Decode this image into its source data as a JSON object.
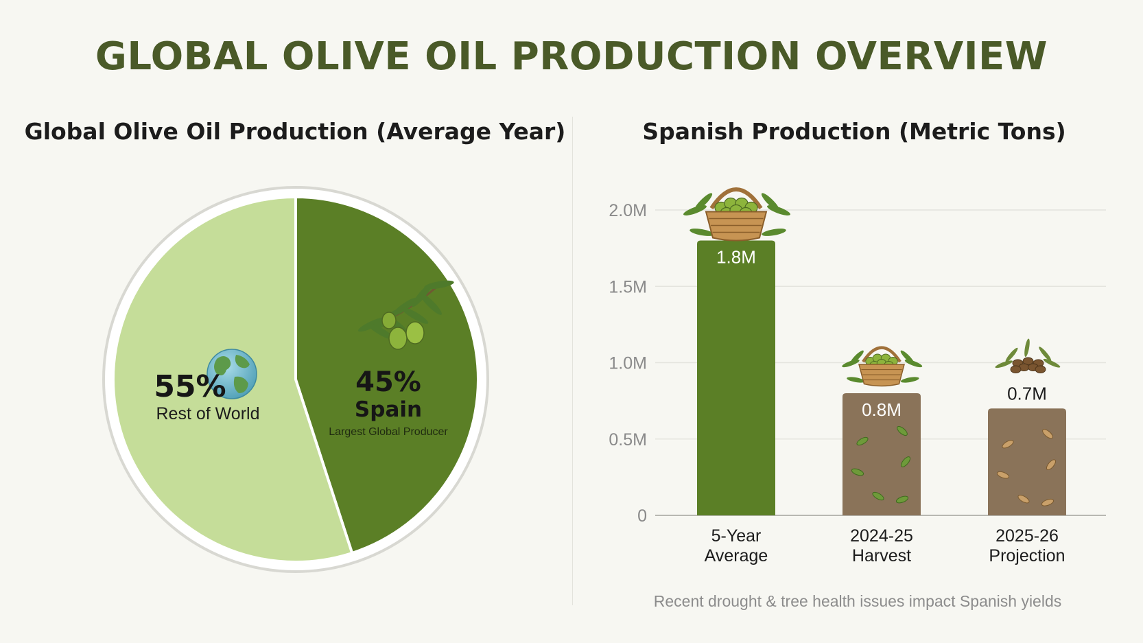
{
  "title": "GLOBAL OLIVE OIL PRODUCTION OVERVIEW",
  "colors": {
    "spain": "#5b7f26",
    "rest_of_world": "#c5dd99",
    "bar_primary": "#5b7f26",
    "bar_declined": "#8a7359",
    "title": "#4a5a28"
  },
  "chart_data": [
    {
      "type": "pie",
      "title": "Global Olive Oil Production (Average Year)",
      "slices": [
        {
          "label": "Spain",
          "value": 45,
          "value_label": "45%",
          "note": "Largest Global Producer",
          "color": "#5b7f26",
          "icon": "olive-branch-icon"
        },
        {
          "label": "Rest of World",
          "value": 55,
          "value_label": "55%",
          "color": "#c5dd99",
          "icon": "globe-icon"
        }
      ]
    },
    {
      "type": "bar",
      "title": "Spanish Production (Metric Tons)",
      "categories": [
        "5-Year Average",
        "2024-25 Harvest",
        "2025-26 Projection"
      ],
      "category_lines": [
        [
          "5-Year",
          "Average"
        ],
        [
          "2024-25",
          "Harvest"
        ],
        [
          "2025-26",
          "Projection"
        ]
      ],
      "values": [
        1800000,
        800000,
        700000
      ],
      "value_labels": [
        "1.8M",
        "0.8M",
        "0.7M"
      ],
      "icons": [
        "olive-basket-icon",
        "olive-basket-icon",
        "dried-olives-icon"
      ],
      "bar_colors": [
        "#5b7f26",
        "#8a7359",
        "#8a7359"
      ],
      "ylim": [
        0,
        2000000
      ],
      "yticks": [
        0,
        500000,
        1000000,
        1500000,
        2000000
      ],
      "ytick_labels": [
        "0",
        "0.5M",
        "1.0M",
        "1.5M",
        "2.0M"
      ],
      "grid": true,
      "footnote": "Recent drought & tree health issues impact Spanish yields"
    }
  ]
}
